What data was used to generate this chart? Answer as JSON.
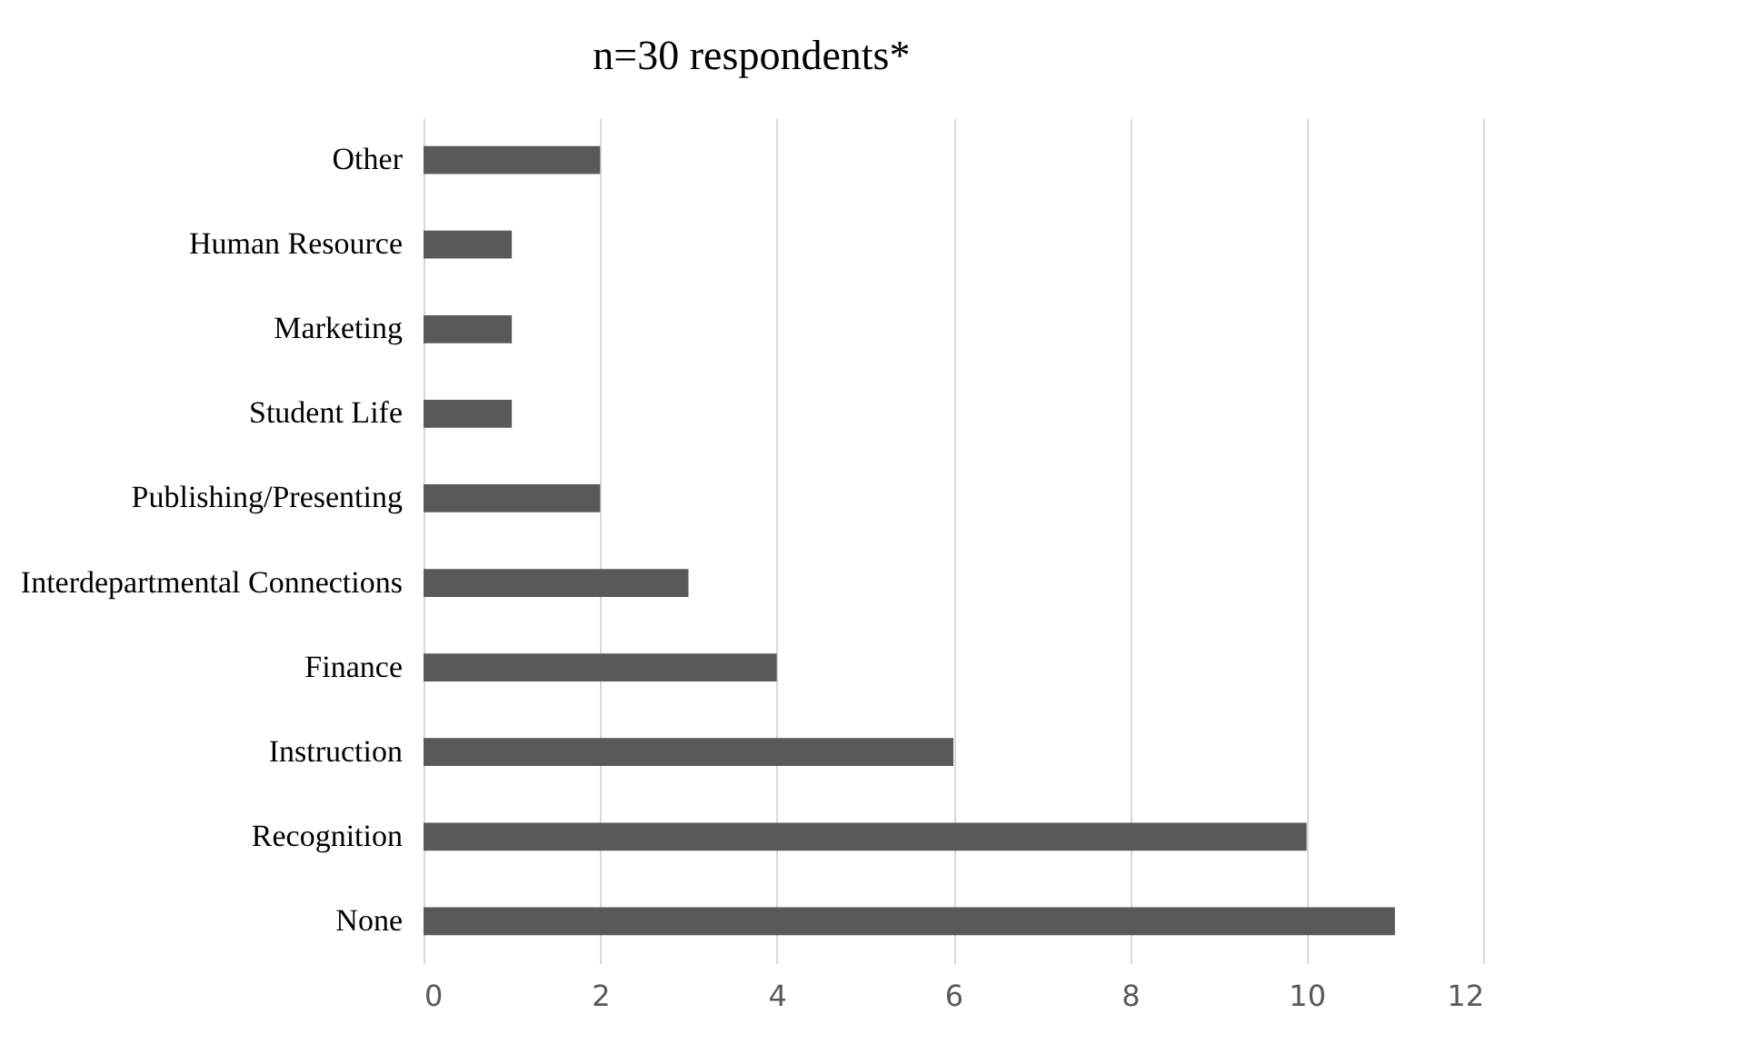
{
  "chart_data": {
    "type": "bar",
    "orientation": "horizontal",
    "title": "n=30 respondents*",
    "categories": [
      "Other",
      "Human Resource",
      "Marketing",
      "Student Life",
      "Publishing/Presenting",
      "Interdepartmental Connections",
      "Finance",
      "Instruction",
      "Recognition",
      "None"
    ],
    "values": [
      2,
      1,
      1,
      1,
      2,
      3,
      4,
      6,
      10,
      11
    ],
    "color": "#595959",
    "xlim": [
      0,
      12
    ],
    "xticks": [
      0,
      2,
      4,
      6,
      8,
      10,
      12
    ],
    "grid": "x"
  }
}
